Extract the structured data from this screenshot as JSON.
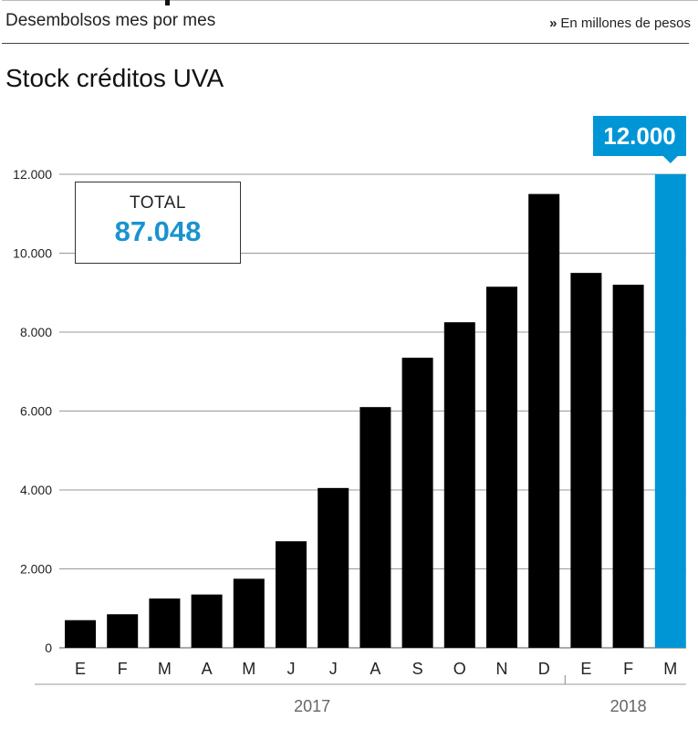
{
  "header": {
    "subtitle": "Desembolsos mes por mes",
    "unit_note": "En millones de pesos",
    "unit_marker": "»"
  },
  "title": "Stock créditos UVA",
  "total": {
    "label": "TOTAL",
    "value": "87.048"
  },
  "colors": {
    "bar": "#000000",
    "highlight": "#0096d6",
    "total_value": "#1a93cf",
    "grid": "#999999"
  },
  "chart_data": {
    "type": "bar",
    "title": "Stock créditos UVA",
    "xlabel": "",
    "ylabel": "",
    "ylim": [
      0,
      12000
    ],
    "ytick_values": [
      0,
      2000,
      4000,
      6000,
      8000,
      10000,
      12000
    ],
    "ytick_labels": [
      "0",
      "2.000",
      "4.000",
      "6.000",
      "8.000",
      "10.000",
      "12.000"
    ],
    "categories": [
      "E",
      "F",
      "M",
      "A",
      "M",
      "J",
      "J",
      "A",
      "S",
      "O",
      "N",
      "D",
      "E",
      "F",
      "M"
    ],
    "values": [
      700,
      850,
      1250,
      1350,
      1750,
      2700,
      4050,
      6100,
      7350,
      8250,
      9150,
      11500,
      9500,
      9200,
      12000
    ],
    "highlight_index": 14,
    "highlight_label": "12.000",
    "year_groups": [
      {
        "label": "2017",
        "start": 0,
        "end": 11
      },
      {
        "label": "2018",
        "start": 12,
        "end": 14
      }
    ],
    "grid": true
  }
}
